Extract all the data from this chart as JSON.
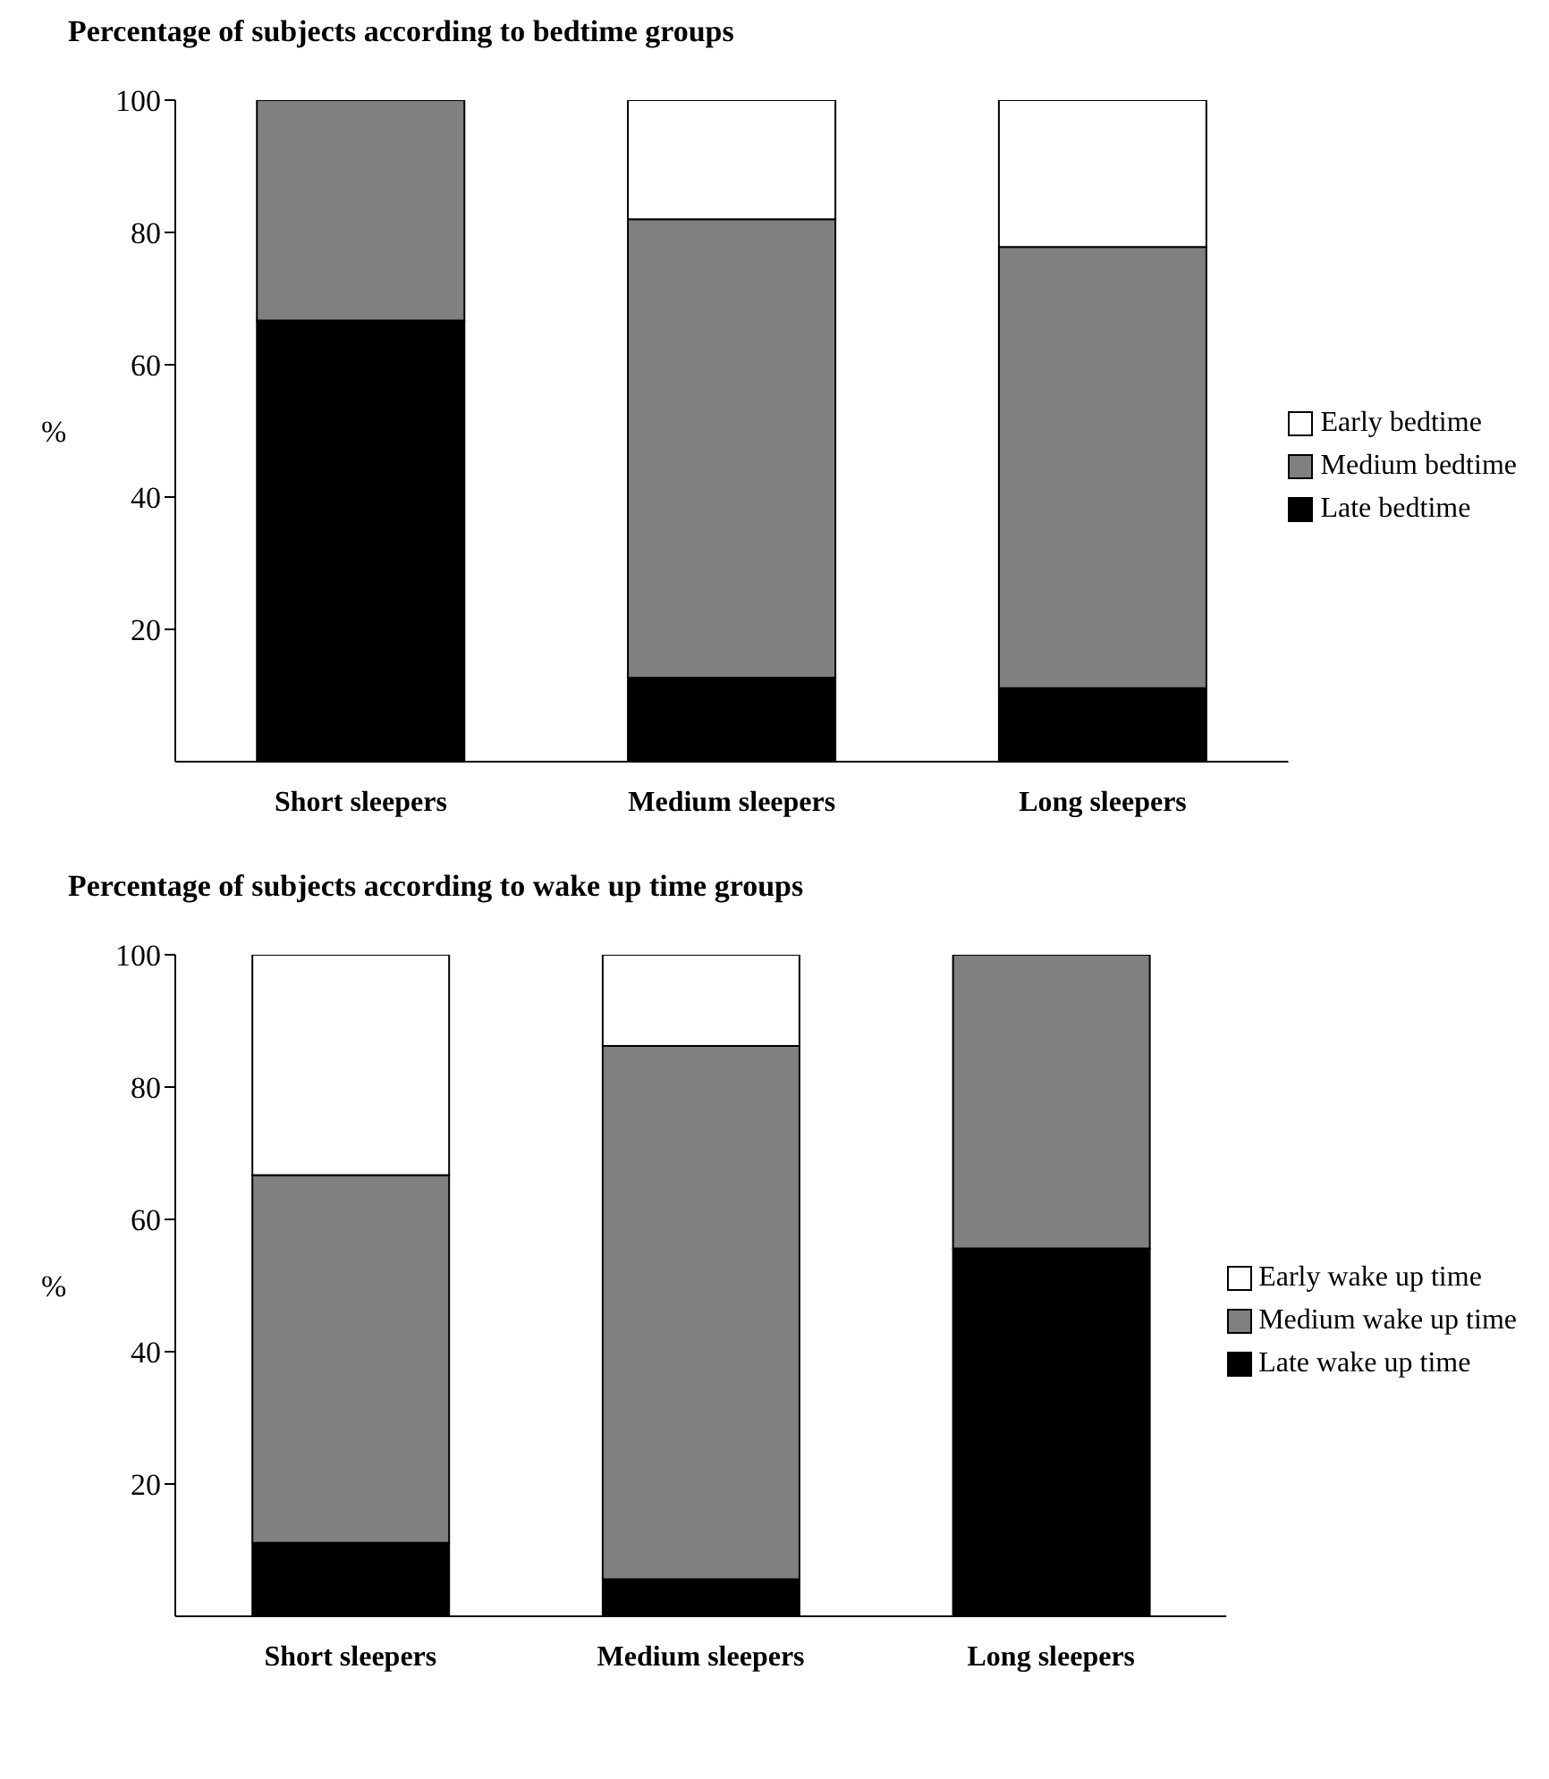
{
  "chart_data": [
    {
      "type": "bar",
      "title": "Percentage of subjects according to bedtime groups",
      "ylabel": "%",
      "categories": [
        "Short sleepers",
        "Medium sleepers",
        "Long sleepers"
      ],
      "stacked": true,
      "ylim": [
        0,
        100
      ],
      "yticks": [
        20,
        40,
        60,
        80,
        100
      ],
      "grid": false,
      "legend": "right",
      "series": [
        {
          "name": "Late bedtime",
          "color": "#000000",
          "values": [
            66.7,
            12.7,
            11.1
          ]
        },
        {
          "name": "Medium bedtime",
          "color": "#808080",
          "values": [
            33.3,
            69.3,
            66.7
          ]
        },
        {
          "name": "Early bedtime",
          "color": "#ffffff",
          "values": [
            0,
            18,
            22.2
          ]
        }
      ]
    },
    {
      "type": "bar",
      "title": "Percentage of subjects according to wake up time groups",
      "ylabel": "%",
      "categories": [
        "Short sleepers",
        "Medium sleepers",
        "Long sleepers"
      ],
      "stacked": true,
      "ylim": [
        0,
        100
      ],
      "yticks": [
        20,
        40,
        60,
        80,
        100
      ],
      "grid": false,
      "legend": "right",
      "series": [
        {
          "name": "Late wake up time",
          "color": "#000000",
          "values": [
            11.1,
            5.6,
            55.6
          ]
        },
        {
          "name": "Medium wake up time",
          "color": "#808080",
          "values": [
            55.6,
            80.6,
            44.4
          ]
        },
        {
          "name": "Early wake up time",
          "color": "#ffffff",
          "values": [
            33.3,
            13.8,
            0
          ]
        }
      ]
    }
  ]
}
